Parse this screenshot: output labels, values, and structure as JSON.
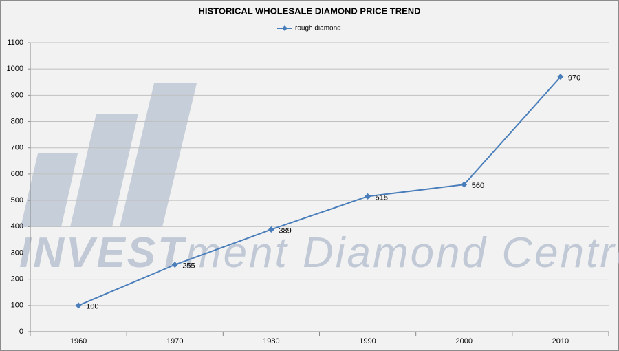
{
  "chart_data": {
    "type": "line",
    "title": "HISTORICAL WHOLESALE DIAMOND PRICE TREND",
    "watermark": [
      "INVEST",
      "ment Diamond Centre"
    ],
    "categories": [
      "1960",
      "1970",
      "1980",
      "1990",
      "2000",
      "2010"
    ],
    "series": [
      {
        "name": "rough diamond",
        "color": "#4a7ebb",
        "values": [
          100,
          255,
          389,
          515,
          560,
          970
        ]
      }
    ],
    "ylim": [
      0,
      1100
    ],
    "yticks": [
      0,
      100,
      200,
      300,
      400,
      500,
      600,
      700,
      800,
      900,
      1000,
      1100
    ],
    "grid": true,
    "legend": "top",
    "data_labels": true
  }
}
